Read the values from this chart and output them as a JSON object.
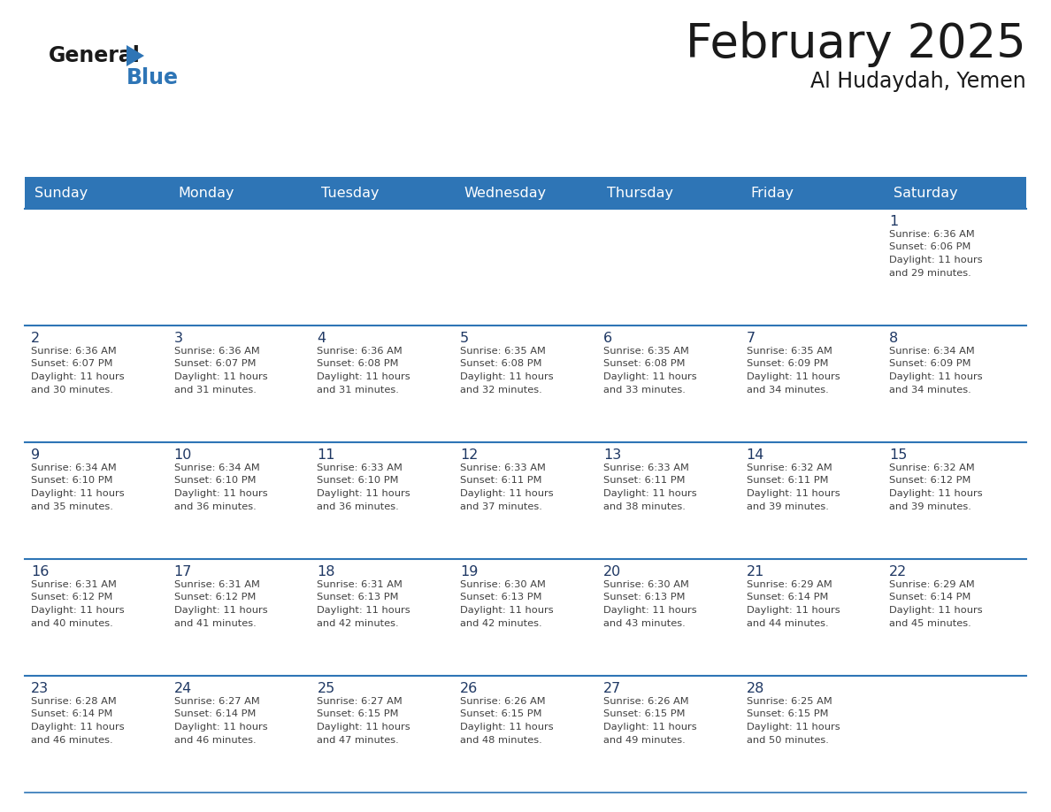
{
  "title": "February 2025",
  "subtitle": "Al Hudaydah, Yemen",
  "header_color": "#2E75B6",
  "header_text_color": "#FFFFFF",
  "day_number_color": "#1F3864",
  "text_color": "#404040",
  "line_color": "#2E75B6",
  "days_of_week": [
    "Sunday",
    "Monday",
    "Tuesday",
    "Wednesday",
    "Thursday",
    "Friday",
    "Saturday"
  ],
  "logo_color_general": "#1a1a1a",
  "logo_color_blue": "#2E75B6",
  "calendar_data": [
    {
      "day": 1,
      "col": 6,
      "row": 0,
      "sunrise": "6:36 AM",
      "sunset": "6:06 PM",
      "daylight_hours": 11,
      "daylight_minutes": 29
    },
    {
      "day": 2,
      "col": 0,
      "row": 1,
      "sunrise": "6:36 AM",
      "sunset": "6:07 PM",
      "daylight_hours": 11,
      "daylight_minutes": 30
    },
    {
      "day": 3,
      "col": 1,
      "row": 1,
      "sunrise": "6:36 AM",
      "sunset": "6:07 PM",
      "daylight_hours": 11,
      "daylight_minutes": 31
    },
    {
      "day": 4,
      "col": 2,
      "row": 1,
      "sunrise": "6:36 AM",
      "sunset": "6:08 PM",
      "daylight_hours": 11,
      "daylight_minutes": 31
    },
    {
      "day": 5,
      "col": 3,
      "row": 1,
      "sunrise": "6:35 AM",
      "sunset": "6:08 PM",
      "daylight_hours": 11,
      "daylight_minutes": 32
    },
    {
      "day": 6,
      "col": 4,
      "row": 1,
      "sunrise": "6:35 AM",
      "sunset": "6:08 PM",
      "daylight_hours": 11,
      "daylight_minutes": 33
    },
    {
      "day": 7,
      "col": 5,
      "row": 1,
      "sunrise": "6:35 AM",
      "sunset": "6:09 PM",
      "daylight_hours": 11,
      "daylight_minutes": 34
    },
    {
      "day": 8,
      "col": 6,
      "row": 1,
      "sunrise": "6:34 AM",
      "sunset": "6:09 PM",
      "daylight_hours": 11,
      "daylight_minutes": 34
    },
    {
      "day": 9,
      "col": 0,
      "row": 2,
      "sunrise": "6:34 AM",
      "sunset": "6:10 PM",
      "daylight_hours": 11,
      "daylight_minutes": 35
    },
    {
      "day": 10,
      "col": 1,
      "row": 2,
      "sunrise": "6:34 AM",
      "sunset": "6:10 PM",
      "daylight_hours": 11,
      "daylight_minutes": 36
    },
    {
      "day": 11,
      "col": 2,
      "row": 2,
      "sunrise": "6:33 AM",
      "sunset": "6:10 PM",
      "daylight_hours": 11,
      "daylight_minutes": 36
    },
    {
      "day": 12,
      "col": 3,
      "row": 2,
      "sunrise": "6:33 AM",
      "sunset": "6:11 PM",
      "daylight_hours": 11,
      "daylight_minutes": 37
    },
    {
      "day": 13,
      "col": 4,
      "row": 2,
      "sunrise": "6:33 AM",
      "sunset": "6:11 PM",
      "daylight_hours": 11,
      "daylight_minutes": 38
    },
    {
      "day": 14,
      "col": 5,
      "row": 2,
      "sunrise": "6:32 AM",
      "sunset": "6:11 PM",
      "daylight_hours": 11,
      "daylight_minutes": 39
    },
    {
      "day": 15,
      "col": 6,
      "row": 2,
      "sunrise": "6:32 AM",
      "sunset": "6:12 PM",
      "daylight_hours": 11,
      "daylight_minutes": 39
    },
    {
      "day": 16,
      "col": 0,
      "row": 3,
      "sunrise": "6:31 AM",
      "sunset": "6:12 PM",
      "daylight_hours": 11,
      "daylight_minutes": 40
    },
    {
      "day": 17,
      "col": 1,
      "row": 3,
      "sunrise": "6:31 AM",
      "sunset": "6:12 PM",
      "daylight_hours": 11,
      "daylight_minutes": 41
    },
    {
      "day": 18,
      "col": 2,
      "row": 3,
      "sunrise": "6:31 AM",
      "sunset": "6:13 PM",
      "daylight_hours": 11,
      "daylight_minutes": 42
    },
    {
      "day": 19,
      "col": 3,
      "row": 3,
      "sunrise": "6:30 AM",
      "sunset": "6:13 PM",
      "daylight_hours": 11,
      "daylight_minutes": 42
    },
    {
      "day": 20,
      "col": 4,
      "row": 3,
      "sunrise": "6:30 AM",
      "sunset": "6:13 PM",
      "daylight_hours": 11,
      "daylight_minutes": 43
    },
    {
      "day": 21,
      "col": 5,
      "row": 3,
      "sunrise": "6:29 AM",
      "sunset": "6:14 PM",
      "daylight_hours": 11,
      "daylight_minutes": 44
    },
    {
      "day": 22,
      "col": 6,
      "row": 3,
      "sunrise": "6:29 AM",
      "sunset": "6:14 PM",
      "daylight_hours": 11,
      "daylight_minutes": 45
    },
    {
      "day": 23,
      "col": 0,
      "row": 4,
      "sunrise": "6:28 AM",
      "sunset": "6:14 PM",
      "daylight_hours": 11,
      "daylight_minutes": 46
    },
    {
      "day": 24,
      "col": 1,
      "row": 4,
      "sunrise": "6:27 AM",
      "sunset": "6:14 PM",
      "daylight_hours": 11,
      "daylight_minutes": 46
    },
    {
      "day": 25,
      "col": 2,
      "row": 4,
      "sunrise": "6:27 AM",
      "sunset": "6:15 PM",
      "daylight_hours": 11,
      "daylight_minutes": 47
    },
    {
      "day": 26,
      "col": 3,
      "row": 4,
      "sunrise": "6:26 AM",
      "sunset": "6:15 PM",
      "daylight_hours": 11,
      "daylight_minutes": 48
    },
    {
      "day": 27,
      "col": 4,
      "row": 4,
      "sunrise": "6:26 AM",
      "sunset": "6:15 PM",
      "daylight_hours": 11,
      "daylight_minutes": 49
    },
    {
      "day": 28,
      "col": 5,
      "row": 4,
      "sunrise": "6:25 AM",
      "sunset": "6:15 PM",
      "daylight_hours": 11,
      "daylight_minutes": 50
    }
  ]
}
